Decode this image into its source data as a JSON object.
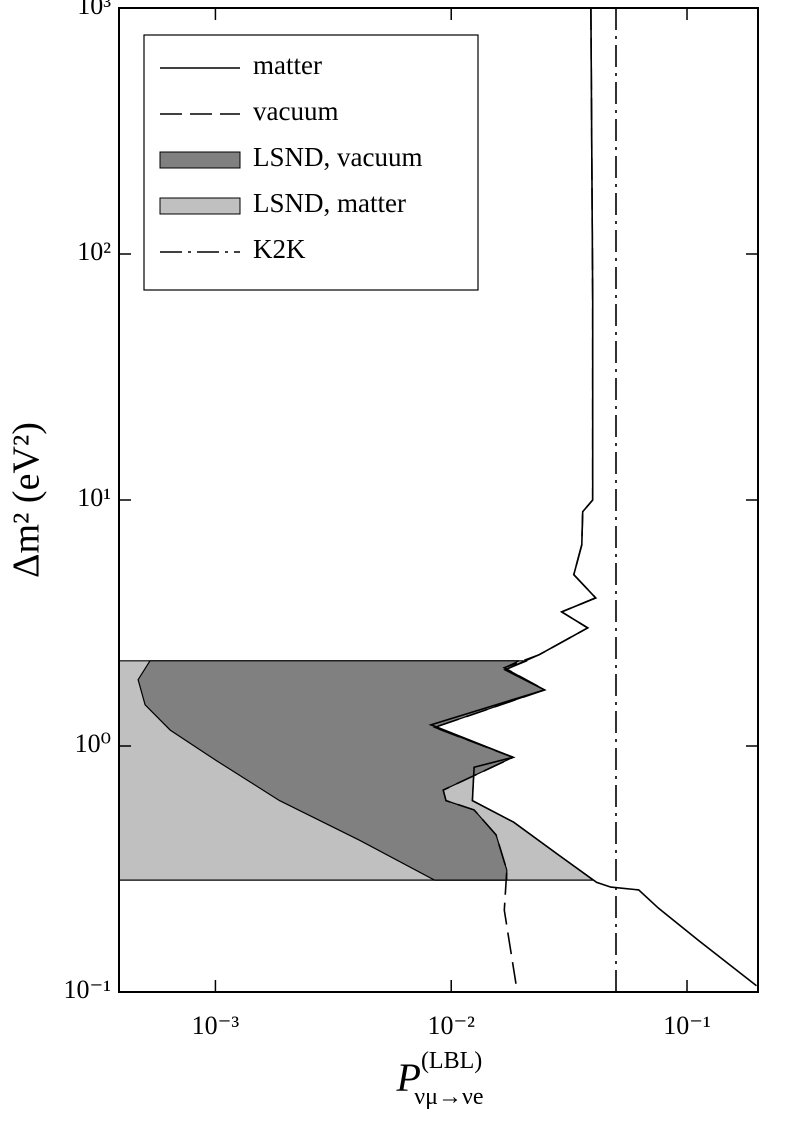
{
  "chart_data": {
    "type": "line",
    "x_label": {
      "symbol": "P",
      "superscript": "(LBL)",
      "subscript": "νμ→νe"
    },
    "y_label": "Δm² (eV²)",
    "xscale": "log",
    "yscale": "log",
    "xlim": [
      0.00039,
      0.2
    ],
    "ylim": [
      0.1,
      1000
    ],
    "xticks": [
      {
        "value": 0.001,
        "label": "10⁻³"
      },
      {
        "value": 0.01,
        "label": "10⁻²"
      },
      {
        "value": 0.1,
        "label": "10⁻¹"
      }
    ],
    "yticks": [
      {
        "value": 0.1,
        "label": "10⁻¹"
      },
      {
        "value": 1,
        "label": "10⁰"
      },
      {
        "value": 10,
        "label": "10¹"
      },
      {
        "value": 100,
        "label": "10²"
      },
      {
        "value": 1000,
        "label": "10³"
      }
    ],
    "legend": "upper left",
    "series": [
      {
        "name": "LSND, matter",
        "style": "fill",
        "color": "#c0c0c0",
        "x": [
          0.00039,
          0.021,
          0.0169,
          0.0249,
          0.0082,
          0.0183,
          0.0125,
          0.0123,
          0.0184,
          0.0286,
          0.04,
          0.00039
        ],
        "y": [
          2.22,
          2.22,
          2.04,
          1.69,
          1.22,
          0.9,
          0.82,
          0.6,
          0.49,
          0.36,
          0.285,
          0.285
        ]
      },
      {
        "name": "LSND, vacuum",
        "style": "fill",
        "color": "#808080",
        "x": [
          0.0194,
          0.000528,
          0.00047,
          0.000503,
          0.000643,
          0.001,
          0.00187,
          0.00408,
          0.0085,
          0.0172,
          0.0172,
          0.0155,
          0.0125,
          0.0095,
          0.00925,
          0.0183,
          0.0085,
          0.0249,
          0.0168
        ],
        "y": [
          2.22,
          2.22,
          1.86,
          1.47,
          1.16,
          0.877,
          0.6,
          0.414,
          0.285,
          0.285,
          0.313,
          0.435,
          0.55,
          0.6,
          0.662,
          0.9,
          1.19,
          1.69,
          2.08
        ]
      },
      {
        "name": "matter",
        "style": "solid",
        "color": "#000000",
        "x": [
          0.0391,
          0.0398,
          0.0398,
          0.0361,
          0.0358,
          0.0331,
          0.041,
          0.0294,
          0.0379,
          0.0236,
          0.0169,
          0.0249,
          0.0082,
          0.0183,
          0.0125,
          0.0123,
          0.0184,
          0.0286,
          0.0414,
          0.0475,
          0.0624,
          0.0758,
          0.112,
          0.197
        ],
        "y": [
          1000,
          65,
          10,
          8.96,
          6.58,
          4.97,
          4.0,
          3.51,
          3.02,
          2.35,
          2.04,
          1.69,
          1.22,
          0.9,
          0.82,
          0.6,
          0.49,
          0.36,
          0.279,
          0.267,
          0.26,
          0.219,
          0.162,
          0.106
        ]
      },
      {
        "name": "vacuum",
        "style": "dashed",
        "color": "#000000",
        "x": [
          0.0391,
          0.0398,
          0.0398,
          0.0361,
          0.0358,
          0.0331,
          0.041,
          0.0294,
          0.0379,
          0.0236,
          0.0168,
          0.0249,
          0.0085,
          0.0183,
          0.00925,
          0.0095,
          0.0125,
          0.0155,
          0.0172,
          0.0168,
          0.019
        ],
        "y": [
          1000,
          65,
          10,
          8.96,
          6.58,
          4.97,
          4.0,
          3.51,
          3.02,
          2.35,
          2.08,
          1.69,
          1.19,
          0.9,
          0.662,
          0.6,
          0.55,
          0.435,
          0.313,
          0.215,
          0.1016
        ]
      },
      {
        "name": "K2K",
        "style": "dashdot",
        "color": "#000000",
        "x": [
          0.05,
          0.05
        ],
        "y": [
          0.1,
          1000
        ]
      }
    ],
    "legend_order": [
      "matter",
      "vacuum",
      "LSND, vacuum",
      "LSND, matter",
      "K2K"
    ]
  }
}
